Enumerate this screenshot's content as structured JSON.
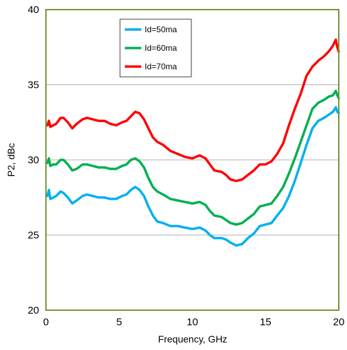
{
  "chart_data": {
    "type": "line",
    "title": "",
    "xlabel": "Frequency, GHz",
    "ylabel": "P2, dBc",
    "xlim": [
      0,
      20
    ],
    "ylim": [
      20,
      40
    ],
    "x_ticks": [
      "0",
      "5",
      "10",
      "15",
      "20"
    ],
    "y_ticks": [
      "20",
      "25",
      "30",
      "35",
      "40"
    ],
    "grid": true,
    "legend_position": "top-left",
    "frame_color": "#77933c",
    "grid_color": "#b3b3b3",
    "series": [
      {
        "name": "Id=50ma",
        "color": "#00b0f0",
        "points": [
          [
            0.1,
            27.6
          ],
          [
            0.2,
            28.0
          ],
          [
            0.3,
            27.4
          ],
          [
            0.5,
            27.5
          ],
          [
            0.7,
            27.6
          ],
          [
            1.0,
            27.9
          ],
          [
            1.2,
            27.8
          ],
          [
            1.5,
            27.5
          ],
          [
            1.8,
            27.1
          ],
          [
            2.1,
            27.3
          ],
          [
            2.5,
            27.6
          ],
          [
            2.8,
            27.7
          ],
          [
            3.2,
            27.6
          ],
          [
            3.6,
            27.5
          ],
          [
            4.0,
            27.5
          ],
          [
            4.4,
            27.4
          ],
          [
            4.8,
            27.4
          ],
          [
            5.2,
            27.6
          ],
          [
            5.5,
            27.7
          ],
          [
            5.8,
            28.0
          ],
          [
            6.1,
            28.2
          ],
          [
            6.4,
            28.0
          ],
          [
            6.7,
            27.6
          ],
          [
            7.0,
            26.9
          ],
          [
            7.3,
            26.3
          ],
          [
            7.6,
            25.9
          ],
          [
            8.0,
            25.8
          ],
          [
            8.5,
            25.6
          ],
          [
            9.0,
            25.6
          ],
          [
            9.5,
            25.5
          ],
          [
            10.0,
            25.4
          ],
          [
            10.5,
            25.5
          ],
          [
            10.9,
            25.3
          ],
          [
            11.2,
            25.0
          ],
          [
            11.5,
            24.8
          ],
          [
            12.0,
            24.8
          ],
          [
            12.3,
            24.7
          ],
          [
            12.6,
            24.5
          ],
          [
            13.0,
            24.3
          ],
          [
            13.4,
            24.4
          ],
          [
            13.8,
            24.8
          ],
          [
            14.2,
            25.1
          ],
          [
            14.6,
            25.6
          ],
          [
            15.0,
            25.7
          ],
          [
            15.4,
            25.8
          ],
          [
            15.8,
            26.3
          ],
          [
            16.2,
            26.8
          ],
          [
            16.6,
            27.6
          ],
          [
            17.0,
            28.6
          ],
          [
            17.4,
            29.8
          ],
          [
            17.8,
            31.0
          ],
          [
            18.2,
            32.1
          ],
          [
            18.6,
            32.6
          ],
          [
            19.0,
            32.8
          ],
          [
            19.3,
            33.0
          ],
          [
            19.6,
            33.2
          ],
          [
            19.8,
            33.5
          ],
          [
            19.9,
            33.2
          ],
          [
            20.0,
            33.1
          ]
        ]
      },
      {
        "name": "Id=60ma",
        "color": "#00b050",
        "points": [
          [
            0.1,
            29.8
          ],
          [
            0.2,
            30.1
          ],
          [
            0.3,
            29.6
          ],
          [
            0.5,
            29.7
          ],
          [
            0.7,
            29.7
          ],
          [
            1.0,
            30.0
          ],
          [
            1.2,
            30.0
          ],
          [
            1.5,
            29.7
          ],
          [
            1.8,
            29.3
          ],
          [
            2.1,
            29.4
          ],
          [
            2.5,
            29.7
          ],
          [
            2.8,
            29.7
          ],
          [
            3.2,
            29.6
          ],
          [
            3.6,
            29.5
          ],
          [
            4.0,
            29.5
          ],
          [
            4.4,
            29.4
          ],
          [
            4.8,
            29.4
          ],
          [
            5.2,
            29.6
          ],
          [
            5.5,
            29.7
          ],
          [
            5.8,
            30.0
          ],
          [
            6.1,
            30.1
          ],
          [
            6.4,
            29.9
          ],
          [
            6.7,
            29.5
          ],
          [
            7.0,
            28.8
          ],
          [
            7.3,
            28.2
          ],
          [
            7.6,
            27.9
          ],
          [
            8.0,
            27.7
          ],
          [
            8.5,
            27.4
          ],
          [
            9.0,
            27.3
          ],
          [
            9.5,
            27.2
          ],
          [
            10.0,
            27.1
          ],
          [
            10.5,
            27.2
          ],
          [
            10.9,
            27.0
          ],
          [
            11.2,
            26.6
          ],
          [
            11.5,
            26.3
          ],
          [
            12.0,
            26.2
          ],
          [
            12.3,
            26.0
          ],
          [
            12.6,
            25.8
          ],
          [
            13.0,
            25.7
          ],
          [
            13.4,
            25.8
          ],
          [
            13.8,
            26.1
          ],
          [
            14.2,
            26.4
          ],
          [
            14.6,
            26.9
          ],
          [
            15.0,
            27.0
          ],
          [
            15.4,
            27.1
          ],
          [
            15.8,
            27.6
          ],
          [
            16.2,
            28.2
          ],
          [
            16.6,
            29.1
          ],
          [
            17.0,
            30.1
          ],
          [
            17.4,
            31.2
          ],
          [
            17.8,
            32.3
          ],
          [
            18.2,
            33.4
          ],
          [
            18.6,
            33.8
          ],
          [
            19.0,
            34.0
          ],
          [
            19.3,
            34.2
          ],
          [
            19.6,
            34.3
          ],
          [
            19.8,
            34.6
          ],
          [
            19.9,
            34.3
          ],
          [
            20.0,
            34.1
          ]
        ]
      },
      {
        "name": "Id=70ma",
        "color": "#ff0000",
        "points": [
          [
            0.1,
            32.3
          ],
          [
            0.2,
            32.6
          ],
          [
            0.3,
            32.2
          ],
          [
            0.5,
            32.3
          ],
          [
            0.7,
            32.4
          ],
          [
            1.0,
            32.8
          ],
          [
            1.2,
            32.8
          ],
          [
            1.5,
            32.5
          ],
          [
            1.8,
            32.1
          ],
          [
            2.1,
            32.4
          ],
          [
            2.5,
            32.7
          ],
          [
            2.8,
            32.8
          ],
          [
            3.2,
            32.7
          ],
          [
            3.6,
            32.6
          ],
          [
            4.0,
            32.6
          ],
          [
            4.4,
            32.4
          ],
          [
            4.8,
            32.3
          ],
          [
            5.2,
            32.5
          ],
          [
            5.5,
            32.6
          ],
          [
            5.8,
            32.9
          ],
          [
            6.1,
            33.2
          ],
          [
            6.4,
            33.1
          ],
          [
            6.7,
            32.7
          ],
          [
            7.0,
            32.1
          ],
          [
            7.3,
            31.5
          ],
          [
            7.6,
            31.2
          ],
          [
            8.0,
            31.0
          ],
          [
            8.5,
            30.6
          ],
          [
            9.0,
            30.4
          ],
          [
            9.5,
            30.2
          ],
          [
            10.0,
            30.1
          ],
          [
            10.5,
            30.3
          ],
          [
            10.9,
            30.1
          ],
          [
            11.2,
            29.7
          ],
          [
            11.5,
            29.3
          ],
          [
            12.0,
            29.2
          ],
          [
            12.3,
            29.0
          ],
          [
            12.6,
            28.7
          ],
          [
            13.0,
            28.6
          ],
          [
            13.4,
            28.7
          ],
          [
            13.8,
            29.0
          ],
          [
            14.2,
            29.3
          ],
          [
            14.6,
            29.7
          ],
          [
            15.0,
            29.7
          ],
          [
            15.4,
            29.9
          ],
          [
            15.8,
            30.4
          ],
          [
            16.2,
            31.1
          ],
          [
            16.6,
            32.3
          ],
          [
            17.0,
            33.4
          ],
          [
            17.4,
            34.4
          ],
          [
            17.8,
            35.6
          ],
          [
            18.2,
            36.2
          ],
          [
            18.6,
            36.6
          ],
          [
            19.0,
            36.9
          ],
          [
            19.3,
            37.2
          ],
          [
            19.6,
            37.6
          ],
          [
            19.8,
            38.0
          ],
          [
            19.9,
            37.5
          ],
          [
            20.0,
            37.2
          ]
        ]
      }
    ]
  }
}
